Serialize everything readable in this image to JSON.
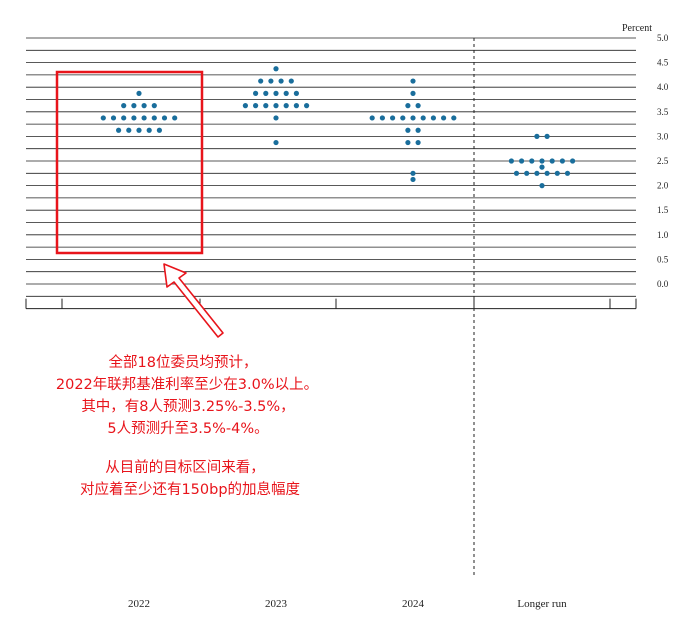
{
  "chart_data": {
    "type": "scatter",
    "title": "",
    "unit_label": "Percent",
    "xlabel": "",
    "ylabel": "",
    "categories": [
      "2022",
      "2023",
      "2024",
      "Longer run"
    ],
    "ylim": [
      -0.5,
      5.0
    ],
    "y_ticks": [
      "5.0",
      "4.5",
      "4.0",
      "3.5",
      "3.0",
      "2.5",
      "2.0",
      "1.5",
      "1.0",
      "0.5",
      "0.0"
    ],
    "y_tick_values": [
      5.0,
      4.5,
      4.0,
      3.5,
      3.0,
      2.5,
      2.0,
      1.5,
      1.0,
      0.5,
      0.0
    ],
    "grid": true,
    "dot_color": "#1a6e9c",
    "series": [
      {
        "category": "2022",
        "points": [
          {
            "y": 3.875,
            "count": 1
          },
          {
            "y": 3.625,
            "count": 4
          },
          {
            "y": 3.375,
            "count": 8
          },
          {
            "y": 3.125,
            "count": 5
          }
        ]
      },
      {
        "category": "2023",
        "points": [
          {
            "y": 4.375,
            "count": 1
          },
          {
            "y": 4.125,
            "count": 4
          },
          {
            "y": 3.875,
            "count": 5
          },
          {
            "y": 3.625,
            "count": 7
          },
          {
            "y": 3.375,
            "count": 1
          },
          {
            "y": 2.875,
            "count": 1
          }
        ]
      },
      {
        "category": "2024",
        "points": [
          {
            "y": 4.125,
            "count": 1
          },
          {
            "y": 3.875,
            "count": 1
          },
          {
            "y": 3.625,
            "count": 2
          },
          {
            "y": 3.375,
            "count": 9
          },
          {
            "y": 3.125,
            "count": 2
          },
          {
            "y": 2.875,
            "count": 2
          },
          {
            "y": 2.25,
            "count": 1
          },
          {
            "y": 2.125,
            "count": 1
          }
        ]
      },
      {
        "category": "Longer run",
        "points": [
          {
            "y": 3.0,
            "count": 2
          },
          {
            "y": 2.5,
            "count": 7
          },
          {
            "y": 2.375,
            "count": 1
          },
          {
            "y": 2.25,
            "count": 6
          },
          {
            "y": 2.0,
            "count": 1
          }
        ]
      }
    ],
    "highlight": {
      "category": "2022",
      "color": "#e8141b"
    },
    "annotation": {
      "color": "#e8141b",
      "lines": [
        "全部18位委员均预计，",
        "2022年联邦基准利率至少在3.0%以上。",
        "其中，有8人预测3.25%-3.5%，",
        "5人预测升至3.5%-4%。",
        "",
        "从目前的目标区间来看，",
        "对应着至少还有150bp的加息幅度"
      ]
    }
  }
}
